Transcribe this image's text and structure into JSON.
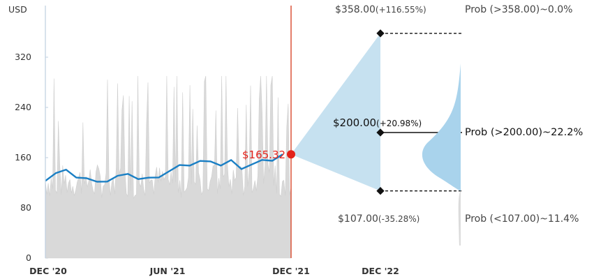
{
  "chart_data": {
    "type": "area",
    "y_unit_label": "USD",
    "y_ticks": [
      0,
      80,
      160,
      240,
      320
    ],
    "ylim": [
      0,
      400
    ],
    "x_ticks": [
      "DEC '20",
      "JUN '21",
      "DEC '21",
      "DEC '22"
    ],
    "current_price_label": "$165.32",
    "current_price": 165.32,
    "price_series": [
      {
        "x": "2020-12",
        "y": 123
      },
      {
        "x": "2021-01",
        "y": 135
      },
      {
        "x": "2021-01b",
        "y": 141
      },
      {
        "x": "2021-02",
        "y": 130
      },
      {
        "x": "2021-02b",
        "y": 128
      },
      {
        "x": "2021-03",
        "y": 121
      },
      {
        "x": "2021-03b",
        "y": 123
      },
      {
        "x": "2021-04",
        "y": 131
      },
      {
        "x": "2021-04b",
        "y": 133
      },
      {
        "x": "2021-05",
        "y": 127
      },
      {
        "x": "2021-05b",
        "y": 127
      },
      {
        "x": "2021-06",
        "y": 129
      },
      {
        "x": "2021-06b",
        "y": 138
      },
      {
        "x": "2021-07",
        "y": 148
      },
      {
        "x": "2021-07b",
        "y": 149
      },
      {
        "x": "2021-08",
        "y": 153
      },
      {
        "x": "2021-08b",
        "y": 154
      },
      {
        "x": "2021-09",
        "y": 147
      },
      {
        "x": "2021-09b",
        "y": 155
      },
      {
        "x": "2021-10",
        "y": 143
      },
      {
        "x": "2021-10b",
        "y": 150
      },
      {
        "x": "2021-11",
        "y": 155
      },
      {
        "x": "2021-11b",
        "y": 156
      },
      {
        "x": "2021-12",
        "y": 165.32
      }
    ],
    "volume_series_shape": "grey-bars",
    "forecast": {
      "high": {
        "label": "$358.00",
        "pct": "(+116.55%)",
        "value": 358,
        "prob": "Prob (>358.00)~0.0%"
      },
      "mid": {
        "label": "$200.00",
        "pct": "(+20.98%)",
        "value": 200,
        "prob": "Prob (>200.00)~22.2%"
      },
      "low": {
        "label": "$107.00",
        "pct": "(-35.28%)",
        "value": 107,
        "prob": "Prob (<107.00)~11.4%"
      }
    },
    "colors": {
      "price_line": "#1a7fc4",
      "volume": "#d9d9d9",
      "cone": "#c6e1f0",
      "marker": "#e3231b",
      "divider": "#d8472a"
    }
  }
}
